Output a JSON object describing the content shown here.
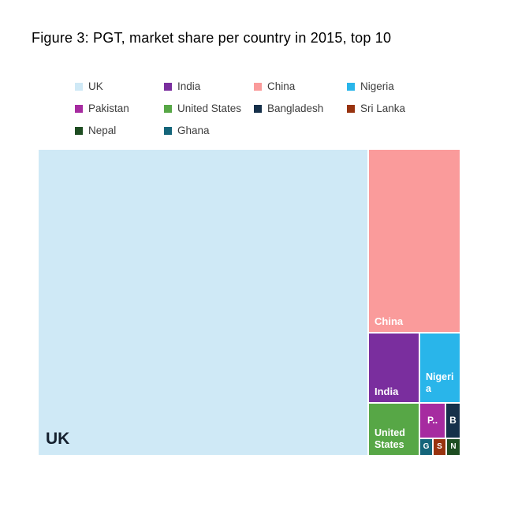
{
  "title": "Figure 3: PGT, market share per country in 2015, top 10",
  "legend": {
    "items": [
      {
        "label": "UK",
        "color": "#cfe9f6"
      },
      {
        "label": "India",
        "color": "#7a2e9e"
      },
      {
        "label": "China",
        "color": "#fa9b9b"
      },
      {
        "label": "Nigeria",
        "color": "#29b5ea"
      },
      {
        "label": "Pakistan",
        "color": "#a62ba0"
      },
      {
        "label": "United States",
        "color": "#57a746"
      },
      {
        "label": "Bangladesh",
        "color": "#16304a"
      },
      {
        "label": "Sri Lanka",
        "color": "#98330f"
      },
      {
        "label": "Nepal",
        "color": "#1e4d22"
      },
      {
        "label": "Ghana",
        "color": "#14657a"
      }
    ]
  },
  "treemap": {
    "cells": [
      {
        "name": "UK",
        "label": "UK",
        "color": "#cfe9f6"
      },
      {
        "name": "China",
        "label": "China",
        "color": "#fa9b9b"
      },
      {
        "name": "India",
        "label": "India",
        "color": "#7a2e9e"
      },
      {
        "name": "Nigeria",
        "label": "Nigeria",
        "color": "#29b5ea"
      },
      {
        "name": "United States",
        "label": "United States",
        "color": "#57a746"
      },
      {
        "name": "Pakistan",
        "label": "P..",
        "color": "#a62ba0"
      },
      {
        "name": "Bangladesh",
        "label": "B",
        "color": "#16304a"
      },
      {
        "name": "Ghana",
        "label": "G",
        "color": "#14657a"
      },
      {
        "name": "Sri Lanka",
        "label": "S",
        "color": "#98330f"
      },
      {
        "name": "Nepal",
        "label": "N",
        "color": "#1e4d22"
      }
    ]
  },
  "chart_data": {
    "type": "treemap",
    "title": "Figure 3: PGT, market share per country in 2015, top 10",
    "series": [
      {
        "name": "UK",
        "value": 78.1
      },
      {
        "name": "China",
        "value": 13.0
      },
      {
        "name": "India",
        "value": 2.8
      },
      {
        "name": "Nigeria",
        "value": 2.2
      },
      {
        "name": "United States",
        "value": 2.0
      },
      {
        "name": "Pakistan",
        "value": 0.7
      },
      {
        "name": "Bangladesh",
        "value": 0.4
      },
      {
        "name": "Nepal",
        "value": 0.17
      },
      {
        "name": "Sri Lanka",
        "value": 0.16
      },
      {
        "name": "Ghana",
        "value": 0.16
      }
    ],
    "units": "% market share (values estimated from cell areas)",
    "legend_position": "top"
  }
}
